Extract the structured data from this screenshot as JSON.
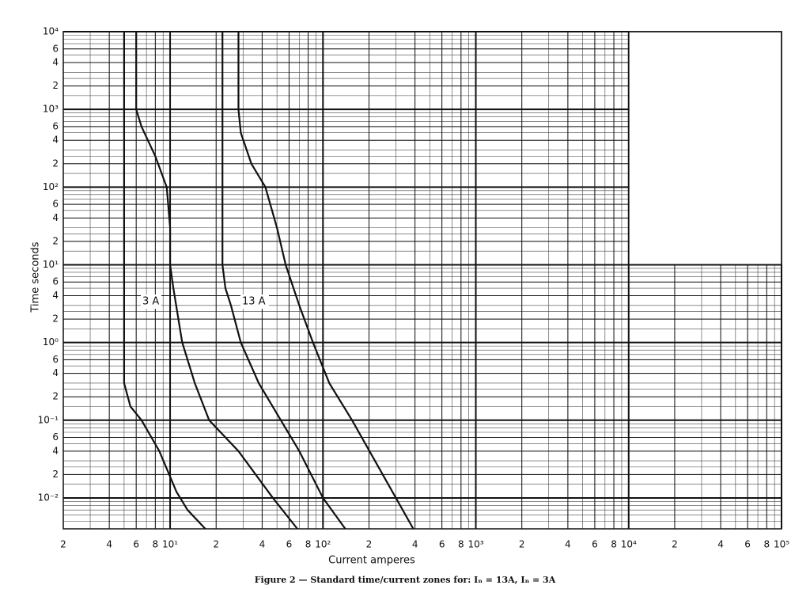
{
  "chart_data": {
    "type": "line",
    "xlabel": "Current      amperes",
    "ylabel": "Time    seconds",
    "caption": "Figure 2 — Standard time/current zones for: Iₙ = 13A, Iₙ = 3A",
    "annotations": [
      "3 A",
      "13 A"
    ],
    "log_x": true,
    "log_y": true,
    "grid": true,
    "xlim": [
      2,
      100000
    ],
    "ylim": [
      0.004,
      10000
    ],
    "xticks": [
      2,
      4,
      6,
      8,
      {
        "value": 10,
        "label": "10¹"
      },
      {
        "value": 20,
        "label": "2"
      },
      {
        "value": 40,
        "label": "4"
      },
      {
        "value": 60,
        "label": "6"
      },
      {
        "value": 80,
        "label": "8"
      },
      {
        "value": 100,
        "label": "10²"
      },
      {
        "value": 200,
        "label": "2"
      },
      {
        "value": 400,
        "label": "4"
      },
      {
        "value": 600,
        "label": "6"
      },
      {
        "value": 800,
        "label": "8"
      },
      {
        "value": 1000,
        "label": "10³"
      },
      {
        "value": 2000,
        "label": "2"
      },
      {
        "value": 4000,
        "label": "4"
      },
      {
        "value": 6000,
        "label": "6"
      },
      {
        "value": 8000,
        "label": "8"
      },
      {
        "value": 10000,
        "label": "10⁴"
      },
      {
        "value": 20000,
        "label": "2"
      },
      {
        "value": 40000,
        "label": "4"
      },
      {
        "value": 60000,
        "label": "6"
      },
      {
        "value": 80000,
        "label": "8"
      },
      {
        "value": 100000,
        "label": "10⁵"
      }
    ],
    "yticks": [
      {
        "value": 10000,
        "label": "10⁴"
      },
      {
        "value": 6000,
        "label": "6"
      },
      {
        "value": 4000,
        "label": "4"
      },
      {
        "value": 2000,
        "label": "2"
      },
      {
        "value": 1000,
        "label": "10³"
      },
      {
        "value": 600,
        "label": "6"
      },
      {
        "value": 400,
        "label": "4"
      },
      {
        "value": 200,
        "label": "2"
      },
      {
        "value": 100,
        "label": "10²"
      },
      {
        "value": 60,
        "label": "6"
      },
      {
        "value": 40,
        "label": "4"
      },
      {
        "value": 20,
        "label": "2"
      },
      {
        "value": 10,
        "label": "10¹"
      },
      6,
      4,
      2,
      {
        "value": 1,
        "label": "10⁰"
      },
      {
        "value": 0.6,
        "label": "6"
      },
      {
        "value": 0.4,
        "label": "4"
      },
      {
        "value": 0.2,
        "label": "2"
      },
      {
        "value": 0.1,
        "label": "10⁻¹"
      },
      {
        "value": 0.06,
        "label": "6"
      },
      {
        "value": 0.04,
        "label": "4"
      },
      {
        "value": 0.02,
        "label": "2"
      },
      {
        "value": 0.01,
        "label": "10⁻²"
      }
    ],
    "series": [
      {
        "color": "#111111",
        "x": [
          5,
          5,
          5,
          5.5,
          6.5,
          8.5,
          11,
          13,
          17
        ],
        "values": [
          10000,
          1,
          0.3,
          0.15,
          0.1,
          0.04,
          0.012,
          0.007,
          0.004
        ]
      },
      {
        "color": "#111111",
        "x": [
          6,
          6,
          6.5,
          8,
          9.5,
          10,
          10,
          10.5,
          12,
          14.5,
          18,
          28,
          47,
          68
        ],
        "values": [
          10000,
          1000,
          600,
          250,
          100,
          30,
          10,
          5,
          1,
          0.3,
          0.1,
          0.04,
          0.01,
          0.004
        ]
      },
      {
        "color": "#111111",
        "x": [
          22,
          22,
          23,
          25,
          29,
          38,
          53,
          70,
          100,
          140
        ],
        "values": [
          10000,
          10,
          5,
          3,
          1,
          0.3,
          0.1,
          0.04,
          0.01,
          0.004
        ]
      },
      {
        "color": "#111111",
        "x": [
          28,
          28,
          29,
          34,
          42,
          50,
          57,
          70,
          86,
          110,
          155,
          300,
          390
        ],
        "values": [
          10000,
          1000,
          500,
          200,
          100,
          30,
          10,
          3,
          1,
          0.3,
          0.1,
          0.01,
          0.004
        ]
      }
    ]
  }
}
